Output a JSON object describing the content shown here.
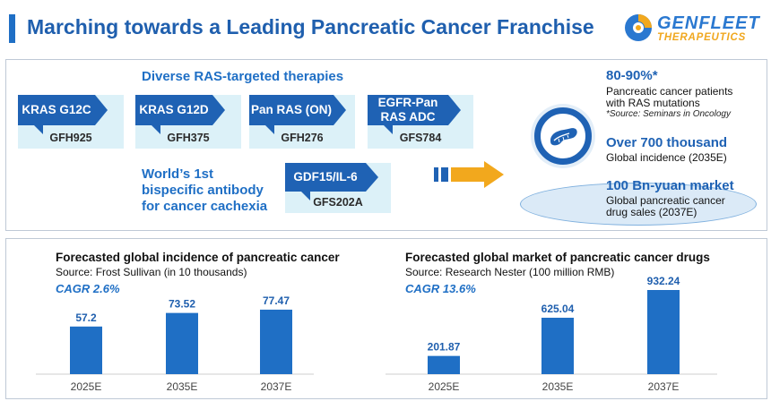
{
  "header": {
    "title": "Marching towards a Leading Pancreatic Cancer Franchise"
  },
  "logo": {
    "line1": "GENFLEET",
    "line2": "THERAPEUTICS"
  },
  "pipeline": {
    "heading": "Diverse RAS-targeted therapies",
    "programs": [
      {
        "target": "KRAS G12C",
        "code": "GFH925"
      },
      {
        "target": "KRAS G12D",
        "code": "GFH375"
      },
      {
        "target": "Pan RAS (ON)",
        "code": "GFH276"
      },
      {
        "target_line1": "EGFR-Pan",
        "target_line2": "RAS ADC",
        "code": "GFS784"
      },
      {
        "target": "GDF15/IL-6",
        "code": "GFS202A"
      }
    ],
    "bispecific": {
      "line1": "World’s 1st",
      "line2": "bispecific antibody",
      "line3": "for cancer cachexia"
    }
  },
  "stats": {
    "s1": {
      "value": "80-90%*",
      "line1": "Pancreatic cancer patients",
      "line2": "with RAS mutations",
      "note": "*Source: Seminars in Oncology"
    },
    "s2": {
      "value": "Over 700 thousand",
      "line1": "Global incidence (2035E)"
    },
    "s3": {
      "value": "100 Bn-yuan market",
      "line1": "Global pancreatic cancer",
      "line2": "drug sales (2037E)"
    }
  },
  "colors": {
    "primary": "#1f62b4",
    "bar": "#1f6fc5",
    "accent": "#f2a81d",
    "light": "#dcf1f8"
  },
  "chart_data": [
    {
      "type": "bar",
      "title": "Forecasted global incidence of pancreatic cancer",
      "source": "Source: Frost Sullivan  (in 10 thousands)",
      "cagr": "CAGR 2.6%",
      "categories": [
        "2025E",
        "2035E",
        "2037E"
      ],
      "values": [
        57.2,
        73.52,
        77.47
      ],
      "labels": [
        "57.2",
        "73.52",
        "77.47"
      ],
      "ylim": [
        0,
        100
      ]
    },
    {
      "type": "bar",
      "title": "Forecasted global market of pancreatic cancer drugs",
      "source": "Source: Research Nester  (100 million RMB)",
      "cagr": "CAGR 13.6%",
      "categories": [
        "2025E",
        "2035E",
        "2037E"
      ],
      "values": [
        201.87,
        625.04,
        932.24
      ],
      "labels": [
        "201.87",
        "625.04",
        "932.24"
      ],
      "ylim": [
        0,
        932.24
      ]
    }
  ]
}
